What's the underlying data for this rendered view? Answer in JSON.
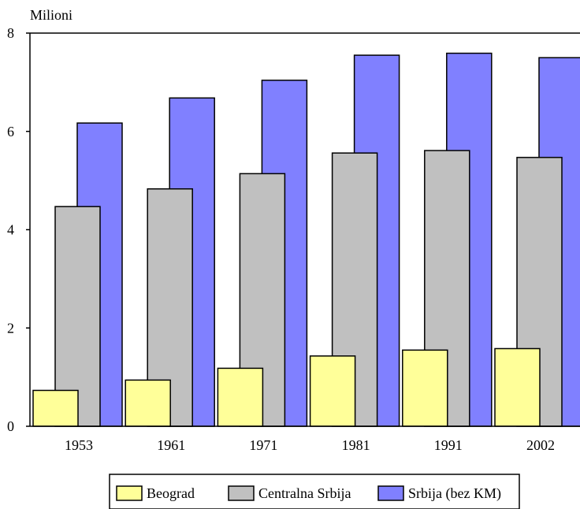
{
  "chart_data": {
    "type": "bar",
    "ylabel": "Milioni",
    "ylim": [
      0,
      8
    ],
    "yticks": [
      0,
      2,
      4,
      6,
      8
    ],
    "grid": false,
    "legend_position": "bottom",
    "categories": [
      "1953",
      "1961",
      "1971",
      "1981",
      "1991",
      "2002"
    ],
    "series": [
      {
        "name": "Beograd",
        "color": "#ffff99",
        "values": [
          0.73,
          0.94,
          1.18,
          1.43,
          1.55,
          1.58
        ]
      },
      {
        "name": "Centralna Srbija",
        "color": "#c0c0c0",
        "values": [
          4.47,
          4.83,
          5.14,
          5.56,
          5.61,
          5.47
        ]
      },
      {
        "name": "Srbija (bez KM)",
        "color": "#8080ff",
        "values": [
          6.17,
          6.68,
          7.04,
          7.55,
          7.59,
          7.5
        ]
      }
    ]
  }
}
